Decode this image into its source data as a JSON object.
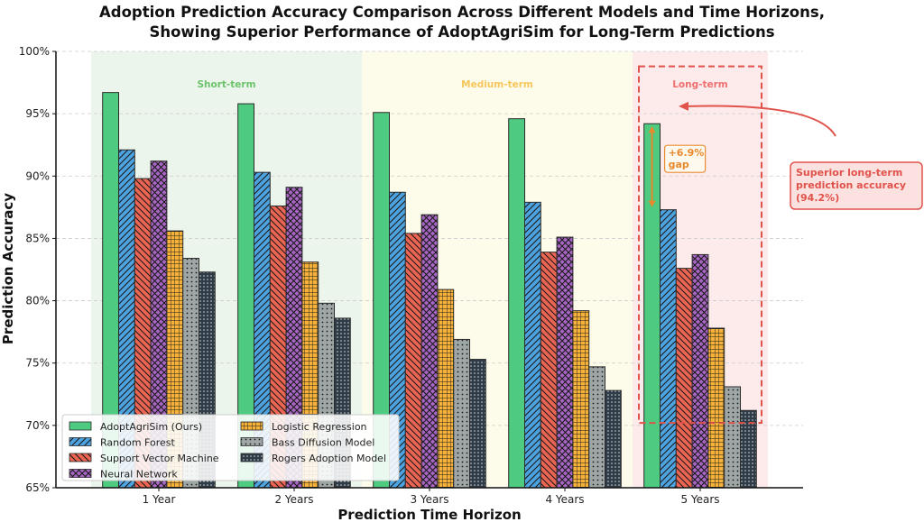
{
  "chart_data": {
    "type": "bar",
    "title": [
      "Adoption Prediction Accuracy Comparison Across Different Models and Time Horizons,",
      "Showing Superior Performance of AdoptAgriSim for Long-Term Predictions"
    ],
    "xlabel": "Prediction Time Horizon",
    "ylabel": "Prediction Accuracy",
    "ylim": [
      65,
      100
    ],
    "yticks": [
      65,
      70,
      75,
      80,
      85,
      90,
      95,
      100
    ],
    "ytick_format": "{v}%",
    "grid": "horizontal dashed",
    "categories": [
      "1 Year",
      "2 Years",
      "3 Years",
      "4 Years",
      "5 Years"
    ],
    "series": [
      {
        "name": "AdoptAgriSim (Ours)",
        "color": "#4ecb80",
        "hatch": "none",
        "values": [
          96.7,
          95.8,
          95.1,
          94.6,
          94.2
        ]
      },
      {
        "name": "Random Forest",
        "color": "#4da3e0",
        "hatch": "forward-diagonal",
        "values": [
          92.1,
          90.3,
          88.7,
          87.9,
          87.3
        ]
      },
      {
        "name": "Support Vector Machine",
        "color": "#ec6553",
        "hatch": "back-diagonal",
        "values": [
          89.8,
          87.6,
          85.4,
          83.9,
          82.6
        ]
      },
      {
        "name": "Neural Network",
        "color": "#a866c4",
        "hatch": "crosshatch-diagonal",
        "values": [
          91.2,
          89.1,
          86.9,
          85.1,
          83.7
        ]
      },
      {
        "name": "Logistic Regression",
        "color": "#f6b13a",
        "hatch": "grid",
        "values": [
          85.6,
          83.1,
          80.9,
          79.2,
          77.8
        ]
      },
      {
        "name": "Bass Diffusion Model",
        "color": "#9ea6a6",
        "hatch": "dots",
        "values": [
          83.4,
          79.8,
          76.9,
          74.7,
          73.1
        ]
      },
      {
        "name": "Rogers Adoption Model",
        "color": "#2f3c47",
        "hatch": "dense-dots",
        "values": [
          82.3,
          78.6,
          75.3,
          72.8,
          71.2
        ]
      }
    ],
    "regions": [
      {
        "label": "Short-term",
        "from_category": 0,
        "to_category": 1,
        "color": "#e8f3e8",
        "text_color": "#6cc36c"
      },
      {
        "label": "Medium-term",
        "from_category": 2,
        "to_category": 3,
        "color": "#fdfbe6",
        "text_color": "#f7c65a"
      },
      {
        "label": "Long-term",
        "from_category": 4,
        "to_category": 4,
        "color": "#fde7e7",
        "text_color": "#ee7070"
      }
    ],
    "annotations": [
      {
        "text": "+6.9%\ngap",
        "between": [
          87.3,
          94.2
        ],
        "category": "5 Years",
        "color": "#e8892b"
      },
      {
        "text": "Superior long-term\nprediction accuracy\n(94.2%)",
        "points_to": "Long-term",
        "color": "#e0524a"
      }
    ],
    "highlight_box": {
      "category": "5 Years",
      "ymin": 70.2,
      "ymax": 98.8,
      "style": "dashed",
      "color": "#e0524a"
    },
    "legend": {
      "placement": "lower-left",
      "columns": 2
    }
  }
}
